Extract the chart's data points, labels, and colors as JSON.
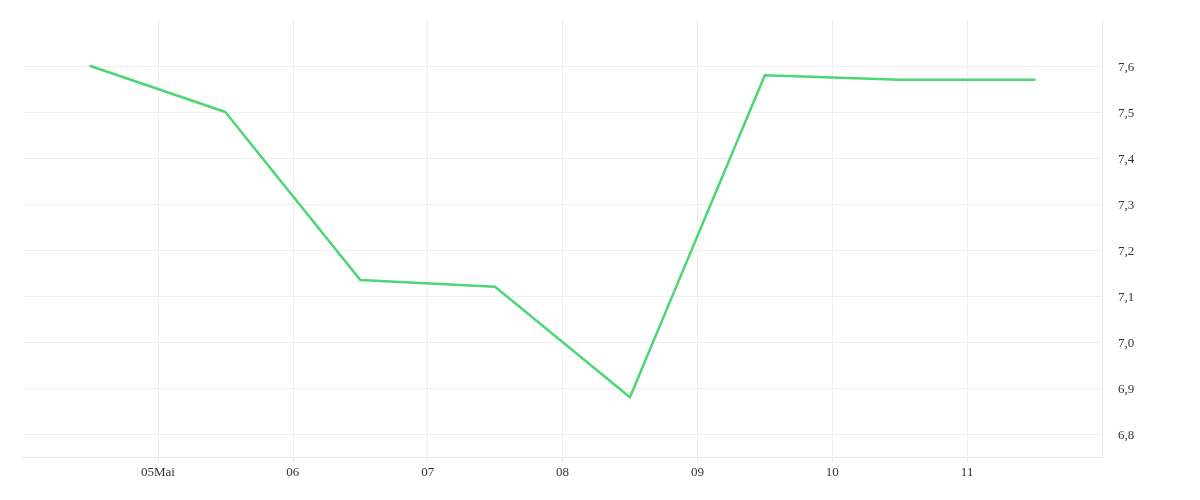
{
  "chart_data": {
    "type": "line",
    "x": [
      "--05-04T12:00",
      "--05-05T12:00",
      "--05-06T12:00",
      "--05-07T12:00",
      "--05-08T12:00",
      "--05-09T12:00",
      "--05-10T12:00",
      "--05-11T12:00"
    ],
    "series": [
      {
        "color": "#4cd674",
        "values": [
          7.6,
          7.5,
          7.135,
          7.12,
          6.88,
          7.58,
          7.57,
          7.57
        ]
      }
    ],
    "xlim": [
      "--05-04",
      "--05-12"
    ],
    "xticks": [
      {
        "value": "--05-05",
        "label": "05Mai"
      },
      {
        "value": "--05-06",
        "label": "06"
      },
      {
        "value": "--05-07",
        "label": "07"
      },
      {
        "value": "--05-08",
        "label": "08"
      },
      {
        "value": "--05-09",
        "label": "09"
      },
      {
        "value": "--05-10",
        "label": "10"
      },
      {
        "value": "--05-11",
        "label": "11"
      }
    ],
    "ylim": [
      6.75,
      7.7
    ],
    "yticks": [
      {
        "value": 6.8,
        "label": "6,8"
      },
      {
        "value": 6.9,
        "label": "6,9"
      },
      {
        "value": 7.0,
        "label": "7,0"
      },
      {
        "value": 7.1,
        "label": "7,1"
      },
      {
        "value": 7.2,
        "label": "7,2"
      },
      {
        "value": 7.3,
        "label": "7,3"
      },
      {
        "value": 7.4,
        "label": "7,4"
      },
      {
        "value": 7.5,
        "label": "7,5"
      },
      {
        "value": 7.6,
        "label": "7,6"
      }
    ],
    "grid": true,
    "marker": "none",
    "line_style": "solid"
  }
}
